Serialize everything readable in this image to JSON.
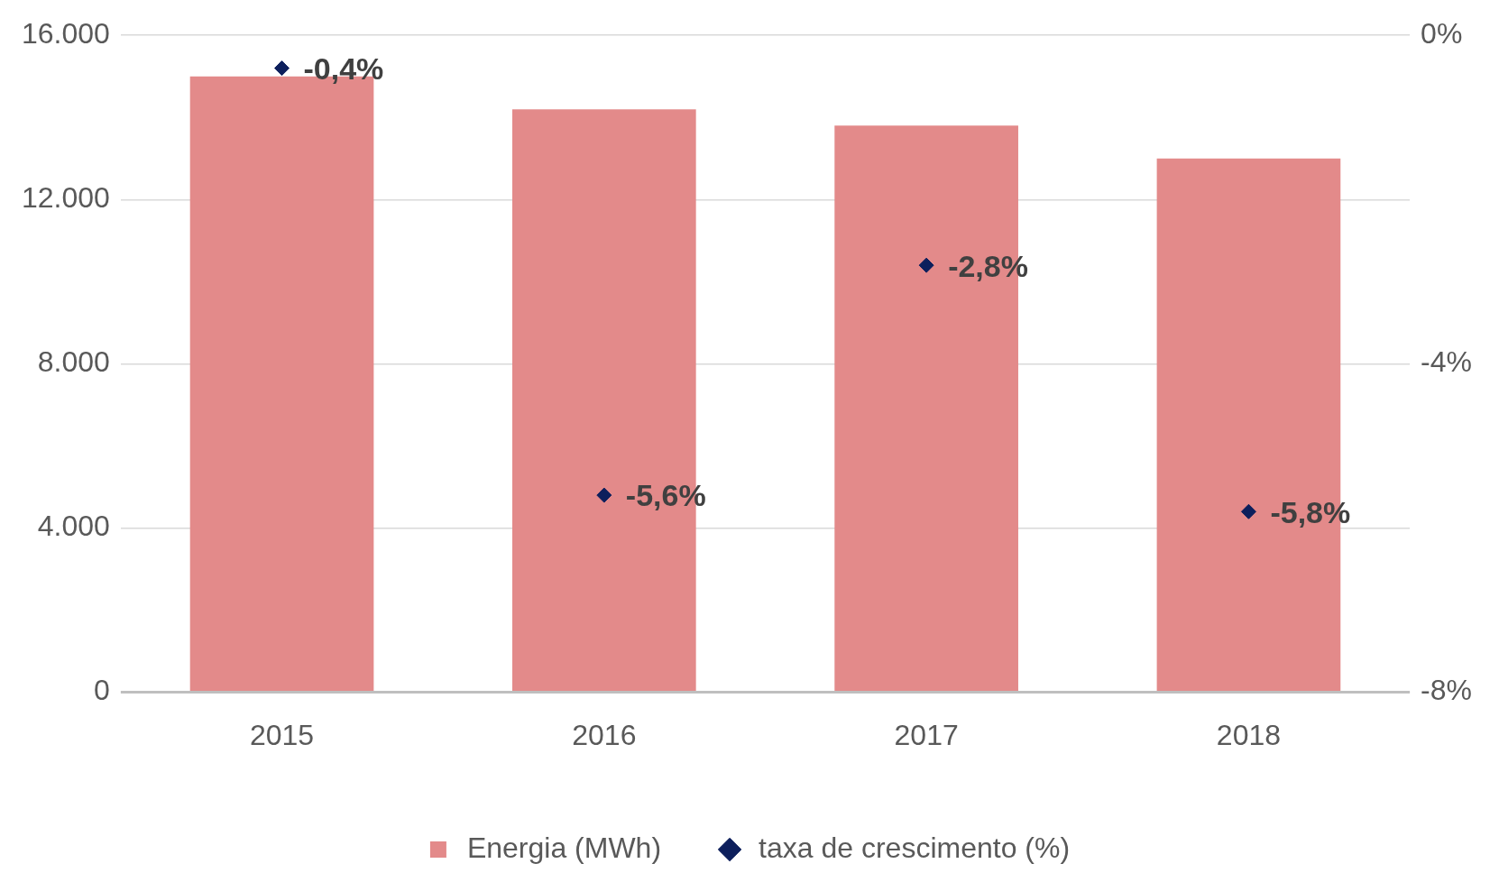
{
  "chart_data": {
    "type": "bar",
    "categories": [
      "2015",
      "2016",
      "2017",
      "2018"
    ],
    "series": [
      {
        "name": "Energia (MWh)",
        "color": "#e38a8a",
        "values": [
          15000,
          14200,
          13800,
          13000
        ]
      },
      {
        "name": "taxa de crescimento (%)",
        "type": "scatter",
        "axis": "y2",
        "color": "#0d1f5c",
        "marker": "diamond",
        "values": [
          -0.4,
          -5.6,
          -2.8,
          -5.8
        ],
        "value_labels": [
          "-0,4%",
          "-5,6%",
          "-2,8%",
          "-5,8%"
        ]
      }
    ],
    "ylim": [
      0,
      16000
    ],
    "yticks": [
      0,
      {
        "value": 4000,
        "label": "4.000"
      },
      {
        "value": 8000,
        "label": "8.000"
      },
      {
        "value": 12000,
        "label": "12.000"
      },
      {
        "value": 16000,
        "label": "16.000"
      }
    ],
    "y2lim": [
      -8,
      0
    ],
    "y2ticks": [
      {
        "value": -8,
        "label": "-8%"
      },
      {
        "value": -4,
        "label": "-4%"
      },
      {
        "value": 0,
        "label": "0%"
      }
    ],
    "grid": "y",
    "legend": "bottom"
  }
}
